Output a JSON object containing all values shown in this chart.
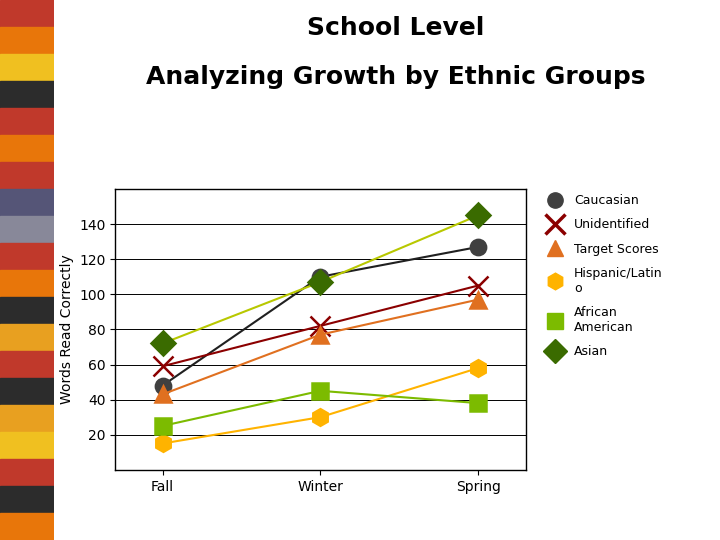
{
  "title_line1": "School Level",
  "title_line2": "Analyzing Growth by Ethnic Groups",
  "ylabel": "Words Read Correctly",
  "x_labels": [
    "Fall",
    "Winter",
    "Spring"
  ],
  "series": [
    {
      "name": "Caucasian",
      "values": [
        48,
        110,
        127
      ],
      "color": "#404040",
      "marker": "o",
      "markersize": 11,
      "linecolor": "#202020"
    },
    {
      "name": "Unidentified",
      "values": [
        59,
        82,
        105
      ],
      "color": "#8B0000",
      "marker": "x",
      "markersize": 14,
      "linecolor": "#8B0000"
    },
    {
      "name": "Target Scores",
      "values": [
        43,
        77,
        97
      ],
      "color": "#E07020",
      "marker": "^",
      "markersize": 12,
      "linecolor": "#E07020"
    },
    {
      "name": "Hispanic/Latino",
      "values": [
        15,
        30,
        58
      ],
      "color": "#FFB300",
      "marker": "h",
      "markersize": 12,
      "linecolor": "#FFB300"
    },
    {
      "name": "African American",
      "values": [
        25,
        45,
        38
      ],
      "color": "#7CBB00",
      "marker": "s",
      "markersize": 11,
      "linecolor": "#7CBB00"
    },
    {
      "name": "Asian",
      "values": [
        72,
        107,
        145
      ],
      "color": "#3A6B00",
      "marker": "D",
      "markersize": 12,
      "linecolor": "#B8C800"
    }
  ],
  "ylim": [
    0,
    160
  ],
  "yticks": [
    20,
    40,
    60,
    80,
    100,
    120,
    140
  ],
  "background_color": "#ffffff",
  "stripe_colors": [
    "#C0392B",
    "#E8760A",
    "#F0C020",
    "#2C2C2C",
    "#C0392B",
    "#E8760A",
    "#C0392B",
    "#555555",
    "#888888",
    "#C0392B",
    "#E8760A",
    "#2C2C2C",
    "#E8760A",
    "#C0392B",
    "#2C2C2C",
    "#E8A020",
    "#F0C020",
    "#C0392B",
    "#2C2C2C"
  ],
  "title_fontsize": 18,
  "axis_label_fontsize": 10,
  "tick_fontsize": 10,
  "legend_fontsize": 9
}
